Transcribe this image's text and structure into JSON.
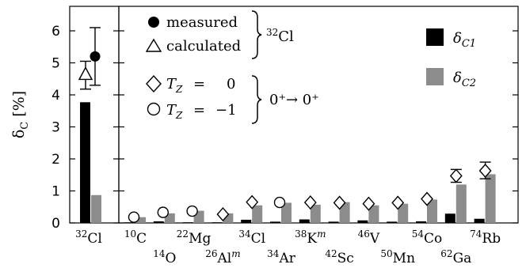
{
  "chart_data": {
    "type": "bar",
    "ylabel": "δ_C [%]",
    "ylim": [
      0,
      6.5
    ],
    "yticks": [
      0,
      1,
      2,
      3,
      4,
      5,
      6
    ],
    "left_panel": {
      "nucleus": {
        "mass": "32",
        "symbol": "Cl",
        "sup": ""
      },
      "dc1": 3.77,
      "dc2": 0.87,
      "measured": {
        "value": 5.2,
        "err_low": 4.3,
        "err_high": 6.1
      },
      "calculated": {
        "value": 4.63,
        "err_low": 4.18,
        "err_high": 5.05
      }
    },
    "nuclei": [
      {
        "mass": "10",
        "symbol": "C",
        "sup": "",
        "dc1": 0.02,
        "dc2": 0.18,
        "marker": "circle",
        "exp": 0.18,
        "row": 1
      },
      {
        "mass": "14",
        "symbol": "O",
        "sup": "",
        "dc1": 0.05,
        "dc2": 0.3,
        "marker": "circle",
        "exp": 0.33,
        "row": 2
      },
      {
        "mass": "22",
        "symbol": "Mg",
        "sup": "",
        "dc1": 0.02,
        "dc2": 0.38,
        "marker": "circle",
        "exp": 0.37,
        "row": 1
      },
      {
        "mass": "26",
        "symbol": "Al",
        "sup": "m",
        "dc1": 0.02,
        "dc2": 0.3,
        "marker": "diamond",
        "exp": 0.27,
        "row": 2
      },
      {
        "mass": "34",
        "symbol": "Cl",
        "sup": "",
        "dc1": 0.1,
        "dc2": 0.55,
        "marker": "diamond",
        "exp": 0.65,
        "row": 1
      },
      {
        "mass": "34",
        "symbol": "Ar",
        "sup": "",
        "dc1": 0.04,
        "dc2": 0.63,
        "marker": "circle",
        "exp": 0.64,
        "row": 2
      },
      {
        "mass": "38",
        "symbol": "K",
        "sup": "m",
        "dc1": 0.11,
        "dc2": 0.57,
        "marker": "diamond",
        "exp": 0.64,
        "row": 1
      },
      {
        "mass": "42",
        "symbol": "Sc",
        "sup": "",
        "dc1": 0.04,
        "dc2": 0.65,
        "marker": "diamond",
        "exp": 0.63,
        "row": 2
      },
      {
        "mass": "46",
        "symbol": "V",
        "sup": "",
        "dc1": 0.08,
        "dc2": 0.55,
        "marker": "diamond",
        "exp": 0.6,
        "row": 1
      },
      {
        "mass": "50",
        "symbol": "Mn",
        "sup": "",
        "dc1": 0.04,
        "dc2": 0.6,
        "marker": "diamond",
        "exp": 0.63,
        "row": 2
      },
      {
        "mass": "54",
        "symbol": "Co",
        "sup": "",
        "dc1": 0.05,
        "dc2": 0.73,
        "marker": "diamond",
        "exp": 0.75,
        "row": 1
      },
      {
        "mass": "62",
        "symbol": "Ga",
        "sup": "",
        "dc1": 0.29,
        "dc2": 1.2,
        "marker": "diamond",
        "exp": 1.47,
        "err": [
          1.27,
          1.67
        ],
        "row": 2
      },
      {
        "mass": "74",
        "symbol": "Rb",
        "sup": "",
        "dc1": 0.13,
        "dc2": 1.52,
        "marker": "diamond",
        "exp": 1.63,
        "err": [
          1.38,
          1.9
        ],
        "row": 1
      }
    ],
    "legend": {
      "measured": "measured",
      "calculated": "calculated",
      "group1_nucleus": {
        "mass": "32",
        "symbol": "Cl"
      },
      "tz0_label": "T",
      "tz0_sub": "Z",
      "tz0_eq": "=",
      "tz0_value": "0",
      "tzm1_label": "T",
      "tzm1_sub": "Z",
      "tzm1_eq": "=",
      "tzm1_value": "−1",
      "transition": "0⁺→ 0⁺",
      "dc1_main": "δ",
      "dc1_sub": "C1",
      "dc2_main": "δ",
      "dc2_sub": "C2"
    },
    "colors": {
      "dc1": "#000000",
      "dc2": "#8c8c8c"
    }
  }
}
